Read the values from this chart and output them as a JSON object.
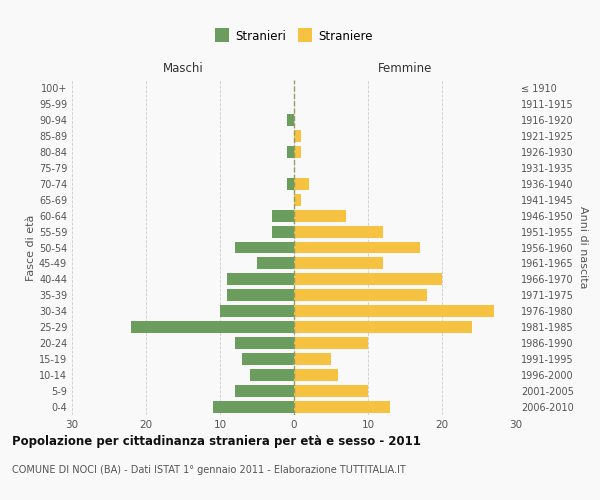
{
  "age_groups": [
    "0-4",
    "5-9",
    "10-14",
    "15-19",
    "20-24",
    "25-29",
    "30-34",
    "35-39",
    "40-44",
    "45-49",
    "50-54",
    "55-59",
    "60-64",
    "65-69",
    "70-74",
    "75-79",
    "80-84",
    "85-89",
    "90-94",
    "95-99",
    "100+"
  ],
  "birth_years": [
    "2006-2010",
    "2001-2005",
    "1996-2000",
    "1991-1995",
    "1986-1990",
    "1981-1985",
    "1976-1980",
    "1971-1975",
    "1966-1970",
    "1961-1965",
    "1956-1960",
    "1951-1955",
    "1946-1950",
    "1941-1945",
    "1936-1940",
    "1931-1935",
    "1926-1930",
    "1921-1925",
    "1916-1920",
    "1911-1915",
    "≤ 1910"
  ],
  "maschi": [
    11,
    8,
    6,
    7,
    8,
    22,
    10,
    9,
    9,
    5,
    8,
    3,
    3,
    0,
    1,
    0,
    1,
    0,
    1,
    0,
    0
  ],
  "femmine": [
    13,
    10,
    6,
    5,
    10,
    24,
    27,
    18,
    20,
    12,
    17,
    12,
    7,
    1,
    2,
    0,
    1,
    1,
    0,
    0,
    0
  ],
  "maschi_color": "#6b9e5e",
  "femmine_color": "#f5c242",
  "background_color": "#f9f9f9",
  "grid_color": "#cccccc",
  "title": "Popolazione per cittadinanza straniera per età e sesso - 2011",
  "subtitle": "COMUNE DI NOCI (BA) - Dati ISTAT 1° gennaio 2011 - Elaborazione TUTTITALIA.IT",
  "xlabel_left": "Maschi",
  "xlabel_right": "Femmine",
  "ylabel_left": "Fasce di età",
  "ylabel_right": "Anni di nascita",
  "legend_maschi": "Stranieri",
  "legend_femmine": "Straniere",
  "xlim": 30
}
